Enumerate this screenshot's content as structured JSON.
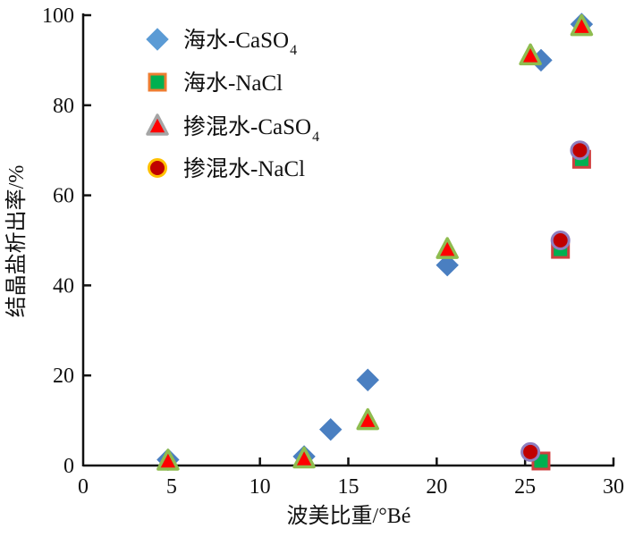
{
  "chart_data": {
    "type": "scatter",
    "xlabel": "波美比重/°Bé",
    "ylabel": "结晶盐析出率/%",
    "xlim": [
      0,
      30
    ],
    "ylim": [
      0,
      100
    ],
    "xticks": [
      "0",
      "5",
      "10",
      "15",
      "20",
      "25",
      "30"
    ],
    "yticks": [
      "20",
      "40",
      "60",
      "80",
      "100"
    ],
    "grid": false,
    "legend_position": "top-left",
    "series": [
      {
        "name": "海水-CaSO",
        "sub": "4",
        "marker": "diamond",
        "fill": "#4a7fc1",
        "stroke": "#4a7fc1",
        "legend_fill": "#5b9bd5",
        "legend_stroke": "#5b9bd5",
        "x": [
          4.8,
          12.5,
          14.0,
          16.1,
          20.6,
          25.9,
          28.2
        ],
        "y": [
          1.3,
          2,
          8,
          19,
          44.5,
          90,
          98
        ]
      },
      {
        "name": "海水-NaCl",
        "sub": "",
        "marker": "square",
        "fill": "#00b050",
        "stroke": "#d04040",
        "legend_fill": "#00b050",
        "legend_stroke": "#ed7d31",
        "x": [
          25.9,
          27.0,
          28.2
        ],
        "y": [
          1,
          48,
          68
        ]
      },
      {
        "name": "掺混水-CaSO",
        "sub": "4",
        "marker": "triangle",
        "fill": "#ff0000",
        "stroke": "#8fbc4f",
        "legend_fill": "#ff0000",
        "legend_stroke": "#a5a5a5",
        "x": [
          4.8,
          12.5,
          16.1,
          20.6,
          25.3,
          28.2
        ],
        "y": [
          1,
          1.5,
          10,
          48,
          91,
          97.5
        ]
      },
      {
        "name": "掺混水-NaCl",
        "sub": "",
        "marker": "circle",
        "fill": "#c00000",
        "stroke": "#8f7fc0",
        "legend_fill": "#c00000",
        "legend_stroke": "#ffc000",
        "x": [
          25.3,
          27.0,
          28.1
        ],
        "y": [
          3,
          50,
          70
        ]
      }
    ]
  }
}
